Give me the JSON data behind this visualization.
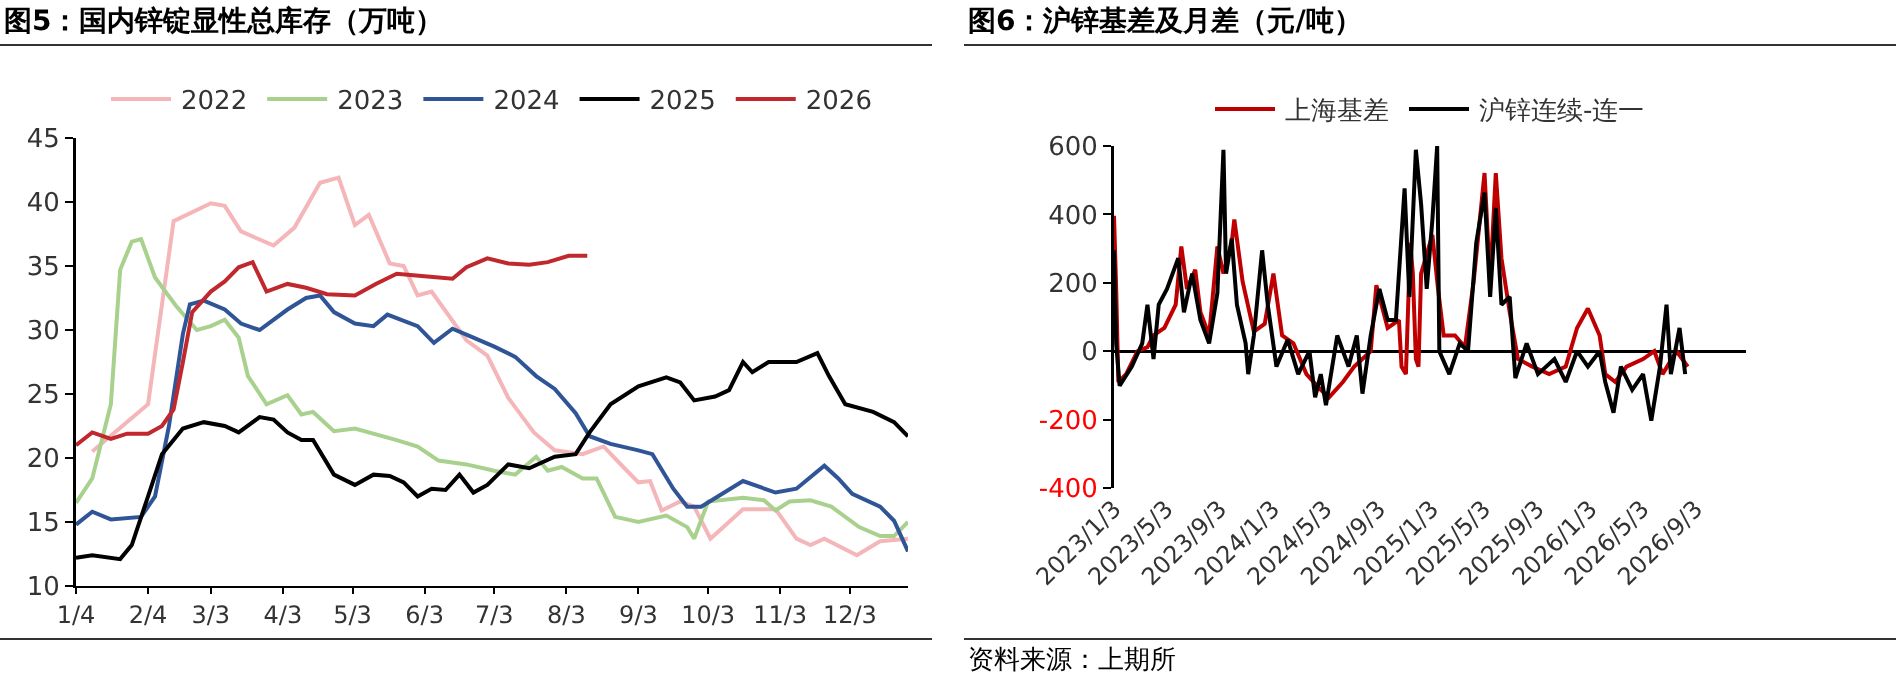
{
  "chart_data": [
    {
      "type": "line",
      "title": "图5：国内锌锭显性总库存（万吨）",
      "legend": "top",
      "xlim": [
        "--01-04",
        "--12-28"
      ],
      "xticks": [
        {
          "value": "--01-04",
          "label": "1/4"
        },
        {
          "value": "--02-04",
          "label": "2/4"
        },
        {
          "value": "--03-03",
          "label": "3/3"
        },
        {
          "value": "--04-03",
          "label": "4/3"
        },
        {
          "value": "--05-03",
          "label": "5/3"
        },
        {
          "value": "--06-03",
          "label": "6/3"
        },
        {
          "value": "--07-03",
          "label": "7/3"
        },
        {
          "value": "--08-03",
          "label": "8/3"
        },
        {
          "value": "--09-03",
          "label": "9/3"
        },
        {
          "value": "--10-03",
          "label": "10/3"
        },
        {
          "value": "--11-03",
          "label": "11/3"
        },
        {
          "value": "--12-03",
          "label": "12/3"
        }
      ],
      "ylim": [
        10,
        45
      ],
      "yticks": [
        10,
        15,
        20,
        25,
        30,
        35,
        40,
        45
      ],
      "series": [
        {
          "name": "2022",
          "color": "#f4b6b9",
          "x": [
            "--01-11",
            "--02-04",
            "--02-15",
            "--03-03",
            "--03-09",
            "--03-16",
            "--03-30",
            "--04-08",
            "--04-19",
            "--04-27",
            "--05-04",
            "--05-10",
            "--05-19",
            "--05-25",
            "--05-31",
            "--06-06",
            "--06-21",
            "--06-30",
            "--07-09",
            "--07-20",
            "--07-29",
            "--08-10",
            "--08-19",
            "--08-28",
            "--09-03",
            "--09-08",
            "--09-13",
            "--09-21",
            "--09-27",
            "--10-04",
            "--10-18",
            "--11-01",
            "--11-10",
            "--11-16",
            "--11-22",
            "--12-06",
            "--12-16",
            "--12-28"
          ],
          "values": [
            20.5,
            24.2,
            38.5,
            39.9,
            39.7,
            37.7,
            36.6,
            38,
            41.5,
            41.9,
            38.2,
            39,
            35.2,
            35,
            32.7,
            33,
            29.2,
            28,
            24.7,
            22,
            20.6,
            20.3,
            20.9,
            19.2,
            18.1,
            18.2,
            15.9,
            16.6,
            16.2,
            13.7,
            16,
            16,
            13.7,
            13.2,
            13.7,
            12.4,
            13.5,
            13.7
          ]
        },
        {
          "name": "2023",
          "color": "#a9d18e",
          "x": [
            "--01-04",
            "--01-11",
            "--01-19",
            "--01-23",
            "--01-28",
            "--02-01",
            "--02-07",
            "--02-16",
            "--02-25",
            "--03-03",
            "--03-09",
            "--03-15",
            "--03-19",
            "--03-27",
            "--04-05",
            "--04-11",
            "--04-16",
            "--04-25",
            "--05-04",
            "--05-22",
            "--05-31",
            "--06-09",
            "--06-21",
            "--07-03",
            "--07-12",
            "--07-21",
            "--07-26",
            "--08-01",
            "--08-10",
            "--08-16",
            "--08-24",
            "--09-03",
            "--09-15",
            "--09-24",
            "--09-27",
            "--10-03",
            "--10-18",
            "--10-27",
            "--11-01",
            "--11-07",
            "--11-16",
            "--11-25",
            "--12-07",
            "--12-16",
            "--12-22",
            "--12-28"
          ],
          "values": [
            16.5,
            18.4,
            24.2,
            34.7,
            36.9,
            37.1,
            34.1,
            31.9,
            30,
            30.3,
            30.8,
            29.4,
            26.4,
            24.2,
            24.9,
            23.4,
            23.6,
            22.1,
            22.3,
            21.4,
            20.9,
            19.8,
            19.5,
            19,
            18.7,
            20.1,
            19,
            19.3,
            18.4,
            18.4,
            15.4,
            15,
            15.5,
            14.6,
            13.7,
            16.6,
            16.9,
            16.7,
            15.9,
            16.6,
            16.7,
            16.2,
            14.6,
            13.9,
            13.9,
            15
          ]
        },
        {
          "name": "2024",
          "color": "#2f5597",
          "x": [
            "--01-04",
            "--01-11",
            "--01-19",
            "--02-01",
            "--02-07",
            "--02-13",
            "--02-19",
            "--02-22",
            "--02-28",
            "--03-09",
            "--03-16",
            "--03-24",
            "--04-05",
            "--04-13",
            "--04-19",
            "--04-25",
            "--05-04",
            "--05-12",
            "--05-18",
            "--05-31",
            "--06-07",
            "--06-15",
            "--06-24",
            "--07-03",
            "--07-12",
            "--07-21",
            "--07-29",
            "--08-07",
            "--08-13",
            "--08-22",
            "--09-03",
            "--09-09",
            "--09-18",
            "--09-24",
            "--09-30",
            "--10-18",
            "--11-01",
            "--11-10",
            "--11-22",
            "--11-28",
            "--12-04",
            "--12-16",
            "--12-22",
            "--12-28"
          ],
          "values": [
            14.8,
            15.8,
            15.2,
            15.4,
            17,
            22.5,
            29.7,
            32,
            32.3,
            31.6,
            30.5,
            30,
            31.6,
            32.5,
            32.7,
            31.4,
            30.5,
            30.3,
            31.2,
            30.3,
            29,
            30.1,
            29.4,
            28.7,
            27.9,
            26.4,
            25.4,
            23.5,
            21.7,
            21.1,
            20.6,
            20.3,
            17.6,
            16.2,
            16.2,
            18.2,
            17.3,
            17.6,
            19.4,
            18.4,
            17.2,
            16.2,
            15.1,
            12.7
          ]
        },
        {
          "name": "2025",
          "color": "#000000",
          "x": [
            "--01-04",
            "--01-11",
            "--01-23",
            "--01-28",
            "--02-04",
            "--02-10",
            "--02-19",
            "--02-28",
            "--03-09",
            "--03-15",
            "--03-24",
            "--03-30",
            "--04-05",
            "--04-11",
            "--04-16",
            "--04-25",
            "--05-04",
            "--05-12",
            "--05-19",
            "--05-25",
            "--05-31",
            "--06-06",
            "--06-12",
            "--06-18",
            "--06-24",
            "--06-30",
            "--07-09",
            "--07-18",
            "--07-29",
            "--08-07",
            "--08-13",
            "--08-22",
            "--09-03",
            "--09-15",
            "--09-21",
            "--09-27",
            "--10-06",
            "--10-12",
            "--10-18",
            "--10-22",
            "--10-29",
            "--11-10",
            "--11-19",
            "--11-24",
            "--12-01",
            "--12-13",
            "--12-22",
            "--12-28"
          ],
          "values": [
            12.2,
            12.4,
            12.1,
            13.2,
            17,
            20.3,
            22.3,
            22.8,
            22.5,
            22,
            23.2,
            23,
            22,
            21.4,
            21.4,
            18.7,
            17.9,
            18.7,
            18.6,
            18.1,
            17,
            17.6,
            17.5,
            18.7,
            17.3,
            17.9,
            19.5,
            19.2,
            20.1,
            20.3,
            22,
            24.2,
            25.6,
            26.3,
            25.9,
            24.5,
            24.8,
            25.3,
            27.5,
            26.7,
            27.5,
            27.5,
            28.2,
            26.4,
            24.2,
            23.6,
            22.8,
            21.7
          ]
        },
        {
          "name": "2026",
          "color": "#c0282d",
          "x": [
            "--01-04",
            "--01-11",
            "--01-19",
            "--01-26",
            "--02-04",
            "--02-10",
            "--02-15",
            "--02-19",
            "--02-23",
            "--03-03",
            "--03-09",
            "--03-15",
            "--03-21",
            "--03-27",
            "--04-05",
            "--04-13",
            "--04-22",
            "--05-04",
            "--05-13",
            "--05-22",
            "--06-03",
            "--06-15",
            "--06-21",
            "--06-30",
            "--07-09",
            "--07-18",
            "--07-26",
            "--08-04",
            "--08-12"
          ],
          "values": [
            21,
            22,
            21.5,
            21.9,
            21.9,
            22.5,
            23.8,
            27.5,
            31.4,
            33,
            33.8,
            34.9,
            35.3,
            33,
            33.6,
            33.3,
            32.8,
            32.7,
            33.6,
            34.4,
            34.2,
            34,
            34.9,
            35.6,
            35.2,
            35.1,
            35.3,
            35.8,
            35.8
          ]
        }
      ]
    },
    {
      "type": "line",
      "title": "图6：沪锌基差及月差（元/吨）",
      "legend": "top",
      "annotations": [
        "资料来源：上期所"
      ],
      "xlim": [
        "2023-01-03",
        "2026-12-28"
      ],
      "xticks": [
        {
          "value": "2023-01-03",
          "label": "2023/1/3"
        },
        {
          "value": "2023-05-03",
          "label": "2023/5/3"
        },
        {
          "value": "2023-09-03",
          "label": "2023/9/3"
        },
        {
          "value": "2024-01-03",
          "label": "2024/1/3"
        },
        {
          "value": "2024-05-03",
          "label": "2024/5/3"
        },
        {
          "value": "2024-09-03",
          "label": "2024/9/3"
        },
        {
          "value": "2025-01-03",
          "label": "2025/1/3"
        },
        {
          "value": "2025-05-03",
          "label": "2025/5/3"
        },
        {
          "value": "2025-09-03",
          "label": "2025/9/3"
        },
        {
          "value": "2026-01-03",
          "label": "2026/1/3"
        },
        {
          "value": "2026-05-03",
          "label": "2026/5/3"
        },
        {
          "value": "2026-09-03",
          "label": "2026/9/3"
        }
      ],
      "ylim": [
        -400,
        600
      ],
      "yticks": [
        -400,
        -200,
        0,
        200,
        400,
        600
      ],
      "series": [
        {
          "name": "上海基差",
          "color": "#c00000",
          "x": [
            "2023-01-03",
            "2023-01-08",
            "2023-01-13",
            "2023-01-31",
            "2023-02-26",
            "2023-03-21",
            "2023-04-04",
            "2023-04-29",
            "2023-05-25",
            "2023-06-07",
            "2023-06-20",
            "2023-07-09",
            "2023-07-21",
            "2023-08-10",
            "2023-08-29",
            "2023-09-12",
            "2023-10-01",
            "2023-10-07",
            "2023-10-26",
            "2023-11-21",
            "2023-12-16",
            "2024-01-05",
            "2024-01-25",
            "2024-02-20",
            "2024-03-21",
            "2024-04-23",
            "2024-05-12",
            "2024-06-13",
            "2024-07-09",
            "2024-08-16",
            "2024-08-29",
            "2024-09-24",
            "2024-10-20",
            "2024-10-26",
            "2024-11-05",
            "2024-11-15",
            "2024-11-21",
            "2024-11-28",
            "2024-12-04",
            "2024-12-10",
            "2025-01-05",
            "2025-01-18",
            "2025-01-31",
            "2025-02-26",
            "2025-03-21",
            "2025-04-10",
            "2025-05-05",
            "2025-05-18",
            "2025-05-31",
            "2025-06-13",
            "2025-07-02",
            "2025-07-21",
            "2025-08-23",
            "2025-10-01",
            "2025-11-08",
            "2025-12-04",
            "2025-12-29",
            "2026-01-25",
            "2026-02-07",
            "2026-03-02",
            "2026-03-28",
            "2026-05-05",
            "2026-05-31",
            "2026-06-19",
            "2026-07-21",
            "2026-08-16"
          ],
          "values": [
            396,
            182,
            -90,
            -67,
            0,
            12,
            46,
            68,
            136,
            306,
            182,
            238,
            114,
            46,
            306,
            227,
            317,
            385,
            204,
            57,
            80,
            227,
            46,
            23,
            -67,
            -113,
            -135,
            -90,
            -45,
            0,
            193,
            68,
            91,
            -45,
            -67,
            317,
            227,
            -23,
            -45,
            227,
            340,
            182,
            46,
            46,
            12,
            204,
            521,
            204,
            521,
            272,
            114,
            -23,
            -45,
            -67,
            -45,
            68,
            125,
            46,
            -67,
            -90,
            -45,
            -23,
            0,
            -67,
            0,
            -45
          ]
        },
        {
          "name": "沪锌连续-连一",
          "color": "#000000",
          "x": [
            "2023-01-03",
            "2023-01-08",
            "2023-01-16",
            "2023-02-13",
            "2023-03-09",
            "2023-03-21",
            "2023-04-04",
            "2023-04-16",
            "2023-05-05",
            "2023-05-31",
            "2023-06-13",
            "2023-07-02",
            "2023-07-21",
            "2023-08-10",
            "2023-08-29",
            "2023-09-12",
            "2023-09-18",
            "2023-10-01",
            "2023-10-13",
            "2023-11-02",
            "2023-11-08",
            "2023-11-21",
            "2023-12-10",
            "2023-12-23",
            "2024-01-12",
            "2024-02-07",
            "2024-03-02",
            "2024-03-28",
            "2024-04-10",
            "2024-04-23",
            "2024-05-05",
            "2024-05-31",
            "2024-06-26",
            "2024-07-15",
            "2024-07-28",
            "2024-08-16",
            "2024-09-05",
            "2024-09-24",
            "2024-10-13",
            "2024-11-02",
            "2024-11-13",
            "2024-11-28",
            "2024-12-10",
            "2024-12-23",
            "2025-01-05",
            "2025-01-16",
            "2025-01-21",
            "2025-02-13",
            "2025-03-09",
            "2025-03-28",
            "2025-04-16",
            "2025-05-05",
            "2025-05-18",
            "2025-05-31",
            "2025-06-13",
            "2025-07-02",
            "2025-07-15",
            "2025-08-10",
            "2025-09-05",
            "2025-10-13",
            "2025-11-08",
            "2025-12-04",
            "2025-12-29",
            "2026-01-25",
            "2026-02-07",
            "2026-02-26",
            "2026-03-15",
            "2026-04-10",
            "2026-05-05",
            "2026-05-24",
            "2026-06-13",
            "2026-06-28",
            "2026-07-08",
            "2026-07-28",
            "2026-08-10"
          ],
          "values": [
            295,
            23,
            -101,
            -45,
            23,
            136,
            -23,
            136,
            182,
            272,
            114,
            227,
            91,
            23,
            170,
            589,
            227,
            329,
            136,
            23,
            -67,
            46,
            295,
            136,
            -45,
            34,
            -67,
            0,
            -135,
            -67,
            -158,
            46,
            -45,
            46,
            -124,
            46,
            182,
            91,
            91,
            476,
            159,
            589,
            430,
            182,
            385,
            600,
            0,
            -67,
            23,
            0,
            317,
            464,
            159,
            419,
            136,
            159,
            -79,
            23,
            -67,
            -23,
            -90,
            0,
            -45,
            0,
            -90,
            -180,
            -45,
            -113,
            -67,
            -203,
            -45,
            136,
            -67,
            68,
            -67
          ]
        }
      ]
    }
  ]
}
